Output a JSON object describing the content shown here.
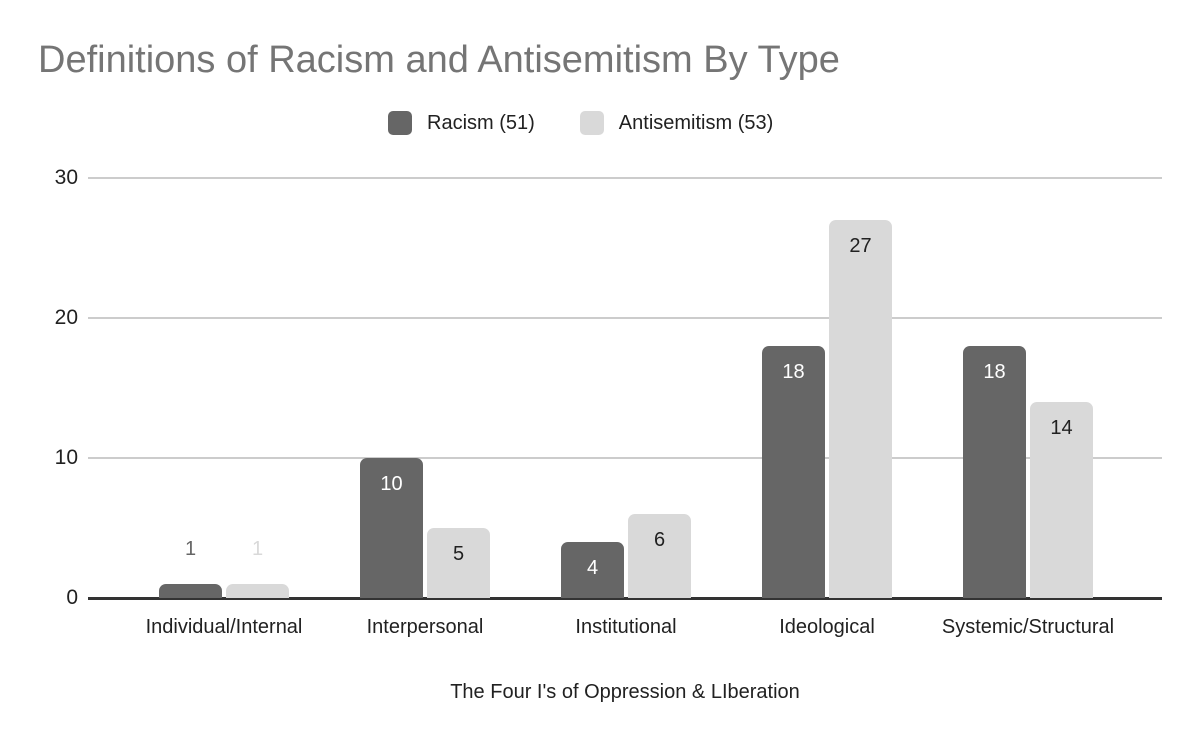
{
  "chart_data": {
    "type": "bar",
    "title": "Definitions of Racism and Antisemitism By Type",
    "categories": [
      "Individual/Internal",
      "Interpersonal",
      "Institutional",
      "Ideological",
      "Systemic/Structural"
    ],
    "series": [
      {
        "name": "Racism (51)",
        "color": "#666666",
        "values": [
          1,
          10,
          4,
          18,
          18
        ],
        "inside_label_color": "#ffffff"
      },
      {
        "name": "Antisemitism (53)",
        "color": "#d9d9d9",
        "values": [
          1,
          5,
          6,
          27,
          14
        ],
        "inside_label_color": "#212121"
      }
    ],
    "bar_value_labels": [
      {
        "series": "Racism (51)",
        "labels": [
          "1",
          "10",
          "4",
          "18",
          "18"
        ]
      },
      {
        "series": "Antisemitism (53)",
        "labels": [
          "1",
          "5",
          "6",
          "27",
          "14"
        ]
      }
    ],
    "xlabel": "The Four I's of Oppression & LIberation",
    "ylabel": "",
    "yticks": [
      0,
      10,
      20,
      30
    ],
    "ylim": [
      0,
      30
    ],
    "grid": true,
    "legend_position": "top"
  },
  "colors": {
    "title_text": "#757575",
    "axis_text": "#212121",
    "gridline": "#cccccc",
    "baseline": "#333333",
    "background": "#ffffff"
  }
}
